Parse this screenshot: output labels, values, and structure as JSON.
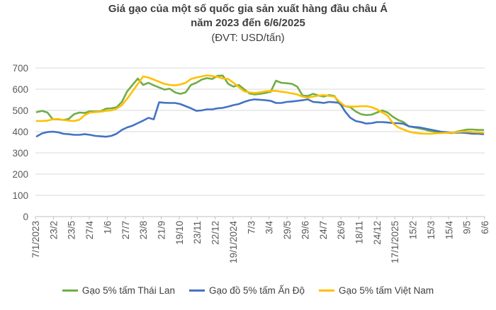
{
  "chart_data": {
    "type": "line",
    "title_line1": "Giá gạo của một số quốc gia sản xuất hàng đầu châu Á",
    "title_line2": "năm 2023 đến 6/6/2025",
    "subtitle": "(ĐVT: USD/tấn)",
    "ylim": [
      0,
      700
    ],
    "yticks": [
      0,
      100,
      200,
      300,
      400,
      500,
      600,
      700
    ],
    "grid": true,
    "legend_position": "bottom",
    "x_labels": [
      "7/1/2023",
      "23/2",
      "23/5",
      "27/4",
      "1/6",
      "27/7",
      "23/8",
      "21/9",
      "19/10",
      "23/11",
      "22/12",
      "19/1/2024",
      "7/3",
      "3/4",
      "29/5",
      "29/6",
      "24/7",
      "26/9",
      "18/11",
      "24/12",
      "17/1/2025",
      "15/2",
      "15/3",
      "15/4",
      "9/5",
      "6/6"
    ],
    "series": [
      {
        "name": "Gạo 5% tấm Thái Lan",
        "color": "#70AD47",
        "values": [
          492,
          498,
          490,
          458,
          458,
          455,
          460,
          482,
          490,
          488,
          496,
          495,
          496,
          508,
          510,
          515,
          540,
          590,
          620,
          650,
          620,
          630,
          618,
          608,
          598,
          602,
          585,
          578,
          585,
          620,
          630,
          645,
          652,
          648,
          663,
          664,
          625,
          612,
          620,
          600,
          580,
          575,
          578,
          582,
          588,
          640,
          630,
          628,
          625,
          612,
          570,
          568,
          578,
          570,
          565,
          572,
          568,
          530,
          520,
          515,
          495,
          482,
          478,
          480,
          490,
          500,
          490,
          470,
          455,
          445,
          425,
          420,
          415,
          410,
          403,
          400,
          398,
          395,
          393,
          400,
          405,
          410,
          410,
          408,
          408
        ]
      },
      {
        "name": "Gạo đồ 5% tấm Ấn Độ",
        "color": "#4472C4",
        "values": [
          378,
          392,
          398,
          400,
          397,
          390,
          388,
          385,
          385,
          388,
          385,
          380,
          378,
          376,
          380,
          390,
          408,
          420,
          428,
          440,
          452,
          465,
          458,
          538,
          536,
          535,
          535,
          530,
          520,
          510,
          498,
          500,
          505,
          505,
          510,
          512,
          518,
          525,
          530,
          540,
          548,
          552,
          550,
          548,
          545,
          535,
          535,
          540,
          542,
          545,
          548,
          552,
          540,
          538,
          535,
          540,
          538,
          535,
          495,
          465,
          450,
          445,
          438,
          440,
          445,
          445,
          443,
          440,
          440,
          437,
          425,
          422,
          420,
          415,
          410,
          405,
          400,
          398,
          395,
          395,
          395,
          393,
          390,
          390,
          388
        ]
      },
      {
        "name": "Gạo 5% tấm Việt Nam",
        "color": "#FFC000",
        "values": [
          450,
          450,
          452,
          458,
          460,
          455,
          452,
          450,
          456,
          478,
          490,
          492,
          494,
          498,
          500,
          508,
          525,
          555,
          590,
          625,
          660,
          655,
          645,
          635,
          625,
          620,
          618,
          622,
          630,
          648,
          655,
          660,
          665,
          662,
          658,
          650,
          648,
          630,
          610,
          590,
          585,
          582,
          585,
          590,
          592,
          592,
          588,
          585,
          580,
          575,
          565,
          560,
          565,
          570,
          572,
          568,
          565,
          540,
          520,
          518,
          518,
          520,
          520,
          515,
          505,
          490,
          475,
          440,
          420,
          410,
          400,
          395,
          392,
          390,
          390,
          392,
          393,
          395,
          395,
          398,
          400,
          400,
          398,
          397,
          395
        ]
      }
    ]
  }
}
